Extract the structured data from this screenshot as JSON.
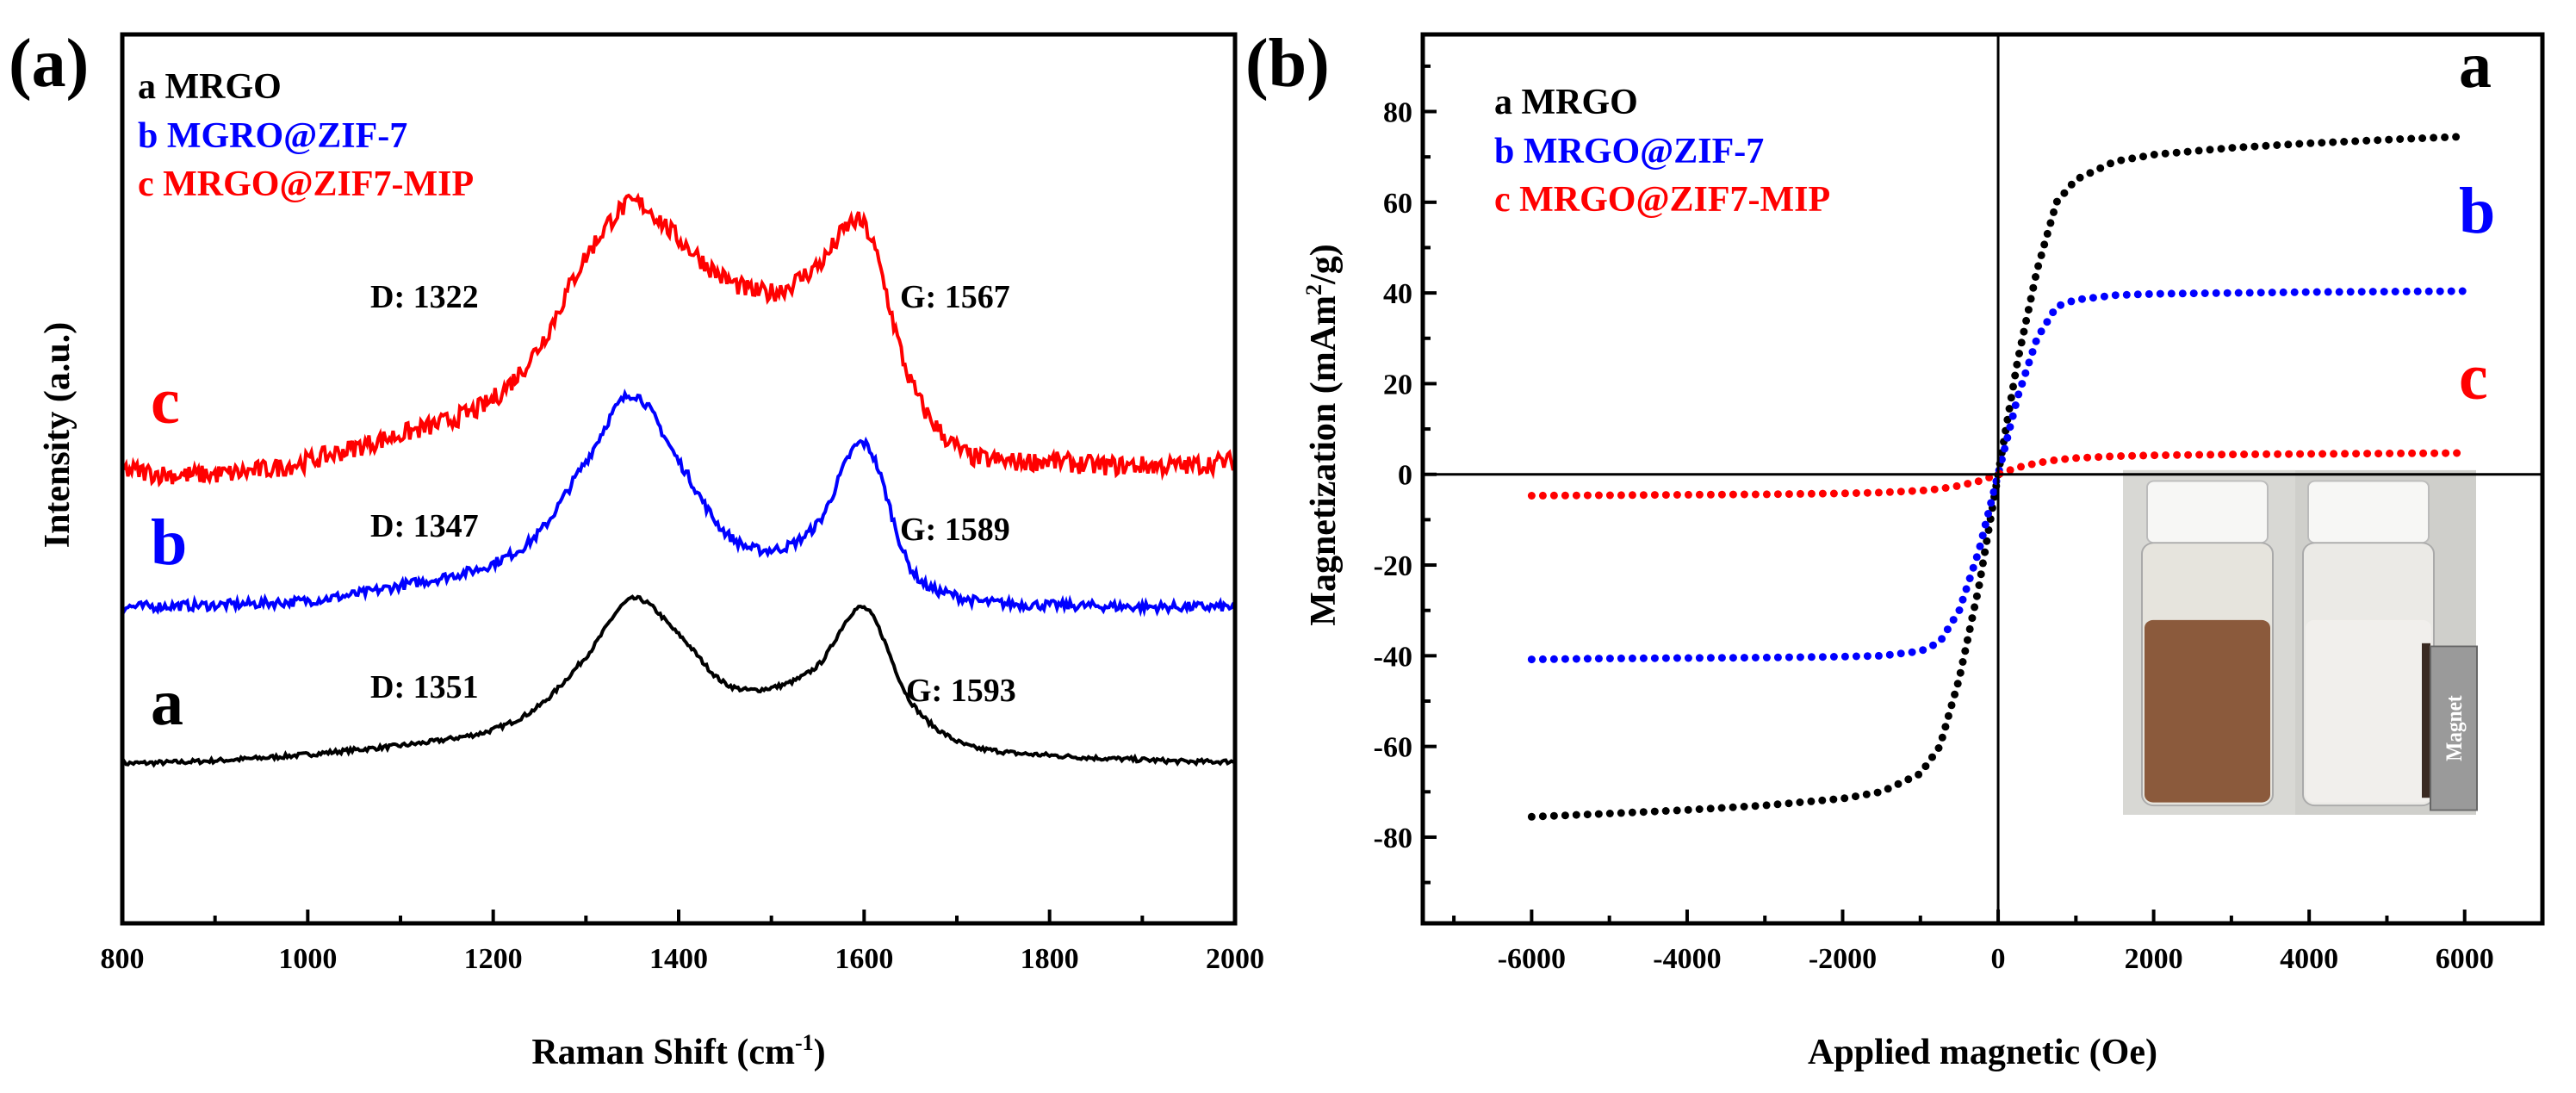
{
  "chart_data": [
    {
      "type": "line",
      "panel_label": "(a)",
      "xlabel": "Raman Shift (cm",
      "xlabel_sup": "-1",
      "xlabel_end": ")",
      "ylabel": "Intensity (a.u.)",
      "xlim": [
        800,
        2000
      ],
      "ylim": [
        0,
        100
      ],
      "xticks": [
        800,
        1000,
        1200,
        1400,
        1600,
        1800,
        2000
      ],
      "yticks_labeled": false,
      "legend": [
        "a MRGO",
        "b MGRO@ZIF-7",
        "c MRGO@ZIF7-MIP"
      ],
      "legend_placement": "top-left",
      "x": [
        800,
        850,
        900,
        950,
        1000,
        1050,
        1100,
        1150,
        1200,
        1250,
        1300,
        1350,
        1400,
        1450,
        1500,
        1550,
        1600,
        1650,
        1700,
        1750,
        1800,
        1850,
        1900,
        1950,
        2000
      ],
      "series": [
        {
          "name": "a",
          "label": "a",
          "color": "#000000",
          "values": [
            18,
            18.1,
            18.3,
            18.6,
            19,
            19.5,
            20,
            20.7,
            21.8,
            24.5,
            30,
            36.5,
            32.5,
            27,
            26.5,
            29,
            35.5,
            25,
            20.5,
            19.3,
            18.9,
            18.6,
            18.4,
            18.2,
            18.2
          ]
        },
        {
          "name": "b",
          "label": "b",
          "color": "#0000ff",
          "values": [
            35.6,
            35.7,
            35.8,
            36,
            36.3,
            37,
            38,
            39,
            40.5,
            44,
            52,
            59.5,
            52,
            44,
            42,
            45,
            54,
            40,
            36.8,
            36,
            35.8,
            35.7,
            35.6,
            35.6,
            35.6
          ]
        },
        {
          "name": "c",
          "label": "c",
          "color": "#ff0000",
          "values": [
            51,
            50.5,
            50.5,
            51,
            52,
            53.5,
            55,
            56.5,
            59,
            65,
            75,
            81,
            77,
            72.5,
            71,
            74,
            78.5,
            61,
            53.5,
            52,
            52,
            51.5,
            51.5,
            51.5,
            52
          ]
        }
      ],
      "annotations": [
        {
          "series": "c",
          "d": "D: 1322",
          "g": "G: 1567"
        },
        {
          "series": "b",
          "d": "D: 1347",
          "g": "G: 1589"
        },
        {
          "series": "a",
          "d": "D: 1351",
          "g": "G: 1593"
        }
      ]
    },
    {
      "type": "scatter",
      "panel_label": "(b)",
      "xlabel": "Applied magnetic (Oe)",
      "ylabel": "Magnetization (mAm",
      "ylabel_sup": "2",
      "ylabel_end": "/g)",
      "xlim": [
        -7400,
        7000
      ],
      "ylim": [
        -99,
        97
      ],
      "xticks": [
        -6000,
        -4000,
        -2000,
        0,
        2000,
        4000,
        6000
      ],
      "yticks": [
        -80,
        -60,
        -40,
        -20,
        0,
        20,
        40,
        60,
        80
      ],
      "legend": [
        "a MRGO",
        "b MRGO@ZIF-7",
        "c MRGO@ZIF7-MIP"
      ],
      "legend_placement": "top-left",
      "x": [
        -6000,
        -5000,
        -4000,
        -3000,
        -2000,
        -1500,
        -1000,
        -750,
        -500,
        -250,
        0,
        250,
        500,
        750,
        1000,
        1500,
        2000,
        3000,
        4000,
        5000,
        6000
      ],
      "series": [
        {
          "name": "a",
          "label": "a",
          "color": "#000000",
          "values": [
            -75.5,
            -74.8,
            -74,
            -73,
            -71.5,
            -70,
            -66,
            -60,
            -45,
            -25,
            0,
            25,
            45,
            60,
            65,
            69,
            70.5,
            72,
            73,
            73.8,
            74.5
          ]
        },
        {
          "name": "b",
          "label": "b",
          "color": "#0000ff",
          "values": [
            -40.8,
            -40.6,
            -40.5,
            -40.4,
            -40.2,
            -40,
            -39,
            -37,
            -30,
            -17,
            0,
            17,
            30,
            37,
            38.5,
            39.5,
            39.8,
            40,
            40.2,
            40.3,
            40.4
          ]
        },
        {
          "name": "c",
          "label": "c",
          "color": "#ff0000",
          "values": [
            -4.7,
            -4.6,
            -4.5,
            -4.4,
            -4.2,
            -4,
            -3.6,
            -3.2,
            -2.5,
            -1.5,
            0,
            1.5,
            2.5,
            3.2,
            3.6,
            4,
            4.2,
            4.4,
            4.5,
            4.6,
            4.7
          ]
        }
      ],
      "inset": {
        "magnet_label": "Magnet"
      }
    }
  ]
}
